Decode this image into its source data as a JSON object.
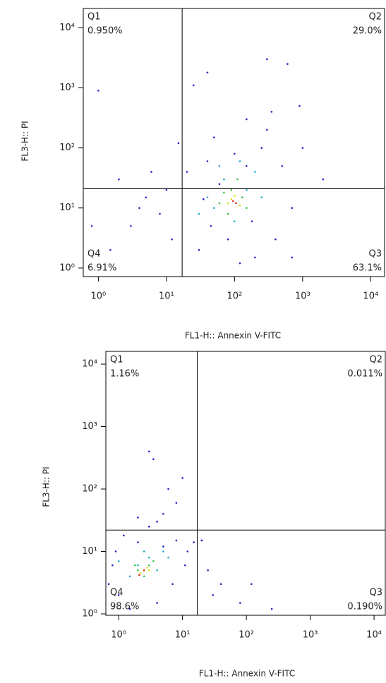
{
  "chart_data": [
    {
      "type": "scatter",
      "x_label": "FL1-H:: Annexin V-FITC",
      "y_label": "FL3-H:: PI",
      "log_x": true,
      "log_y": true,
      "xlim": [
        0.6,
        16000
      ],
      "ylim": [
        0.72,
        21000
      ],
      "xticks": [
        {
          "value": 1,
          "label": "10⁰"
        },
        {
          "value": 10,
          "label": "10¹"
        },
        {
          "value": 100,
          "label": "10²"
        },
        {
          "value": 1000,
          "label": "10³"
        },
        {
          "value": 10000,
          "label": "10⁴"
        }
      ],
      "yticks": [
        {
          "value": 1,
          "label": "10⁰"
        },
        {
          "value": 10,
          "label": "10¹"
        },
        {
          "value": 100,
          "label": "10²"
        },
        {
          "value": 1000,
          "label": "10³"
        },
        {
          "value": 10000,
          "label": "10⁴"
        }
      ],
      "quadrant_gate_x": 17,
      "quadrant_gate_y": 21,
      "quadrants": [
        {
          "name": "Q1",
          "label": "0.950%"
        },
        {
          "name": "Q2",
          "label": "29.0%"
        },
        {
          "name": "Q3",
          "label": "63.1%"
        },
        {
          "name": "Q4",
          "label": "6.91%"
        }
      ],
      "series": [
        {
          "color": "#2020c8",
          "x": [
            3,
            5,
            2,
            8,
            12,
            20,
            30,
            40,
            50,
            150,
            300,
            500,
            700,
            400,
            200,
            1.5,
            6,
            15,
            25,
            40,
            300,
            600,
            1000,
            900,
            60,
            100,
            250,
            350,
            10,
            4,
            1,
            0.8,
            80,
            120,
            180,
            45,
            700,
            2000,
            150,
            35
          ],
          "y": [
            5,
            15,
            30,
            8,
            3,
            40,
            2,
            60,
            150,
            300,
            200,
            50,
            10,
            3,
            1.5,
            2,
            40,
            120,
            1100,
            1800,
            3000,
            2500,
            100,
            500,
            25,
            80,
            100,
            400,
            20,
            10,
            900,
            5,
            3,
            1.2,
            6,
            5,
            1.5,
            30,
            50,
            14
          ]
        },
        {
          "color": "#18a8c8",
          "x": [
            40,
            70,
            150,
            200,
            30,
            100,
            250,
            60,
            120,
            50
          ],
          "y": [
            15,
            30,
            20,
            40,
            8,
            6,
            15,
            50,
            60,
            10
          ]
        },
        {
          "color": "#30c040",
          "x": [
            60,
            90,
            130,
            80,
            110,
            150,
            70
          ],
          "y": [
            12,
            20,
            15,
            8,
            30,
            10,
            18
          ]
        },
        {
          "color": "#e0e020",
          "x": [
            80,
            100,
            120,
            90
          ],
          "y": [
            12,
            16,
            11,
            14
          ]
        },
        {
          "color": "#e03020",
          "x": [
            95,
            105
          ],
          "y": [
            13,
            12
          ]
        }
      ]
    },
    {
      "type": "scatter",
      "x_label": "FL1-H:: Annexin V-FITC",
      "y_label": "FL3-H:: PI",
      "log_x": true,
      "log_y": true,
      "xlim": [
        0.63,
        15000
      ],
      "ylim": [
        0.95,
        16000
      ],
      "xticks": [
        {
          "value": 1,
          "label": "10⁰"
        },
        {
          "value": 10,
          "label": "10¹"
        },
        {
          "value": 100,
          "label": "10²"
        },
        {
          "value": 1000,
          "label": "10³"
        },
        {
          "value": 10000,
          "label": "10⁴"
        }
      ],
      "yticks": [
        {
          "value": 1,
          "label": "10⁰"
        },
        {
          "value": 10,
          "label": "10¹"
        },
        {
          "value": 100,
          "label": "10²"
        },
        {
          "value": 1000,
          "label": "10³"
        },
        {
          "value": 10000,
          "label": "10⁴"
        }
      ],
      "quadrant_gate_x": 17,
      "quadrant_gate_y": 22,
      "quadrants": [
        {
          "name": "Q1",
          "label": "1.16%"
        },
        {
          "name": "Q2",
          "label": "0.011%"
        },
        {
          "name": "Q3",
          "label": "0.190%"
        },
        {
          "name": "Q4",
          "label": "98.6%"
        }
      ],
      "series": [
        {
          "color": "#2020c8",
          "x": [
            1,
            0.8,
            5,
            8,
            1.2,
            3,
            5,
            8,
            4,
            2,
            6,
            10,
            3,
            3.5,
            0.9,
            12,
            15,
            20,
            25,
            40,
            80,
            250,
            120,
            30,
            1.5,
            4,
            7,
            11,
            2,
            0.7
          ],
          "y": [
            2,
            6,
            12,
            15,
            18,
            25,
            40,
            60,
            30,
            35,
            100,
            150,
            400,
            300,
            10,
            10,
            14,
            15,
            5,
            3,
            1.5,
            1.2,
            3,
            2,
            1.2,
            1.5,
            3,
            6,
            14,
            3
          ]
        },
        {
          "color": "#18a8c8",
          "x": [
            1.5,
            3,
            5,
            2,
            4,
            1,
            6,
            2.5
          ],
          "y": [
            4,
            8,
            10,
            6,
            5,
            7,
            8,
            10
          ]
        },
        {
          "color": "#30c040",
          "x": [
            2,
            3,
            2.5,
            3.5,
            1.8
          ],
          "y": [
            5,
            6,
            4,
            7,
            6
          ]
        },
        {
          "color": "#e0e020",
          "x": [
            2.2,
            2.8,
            3
          ],
          "y": [
            4.5,
            5.5,
            5
          ]
        },
        {
          "color": "#e03020",
          "x": [
            2.5,
            2.1
          ],
          "y": [
            5,
            4.2
          ]
        }
      ]
    }
  ]
}
